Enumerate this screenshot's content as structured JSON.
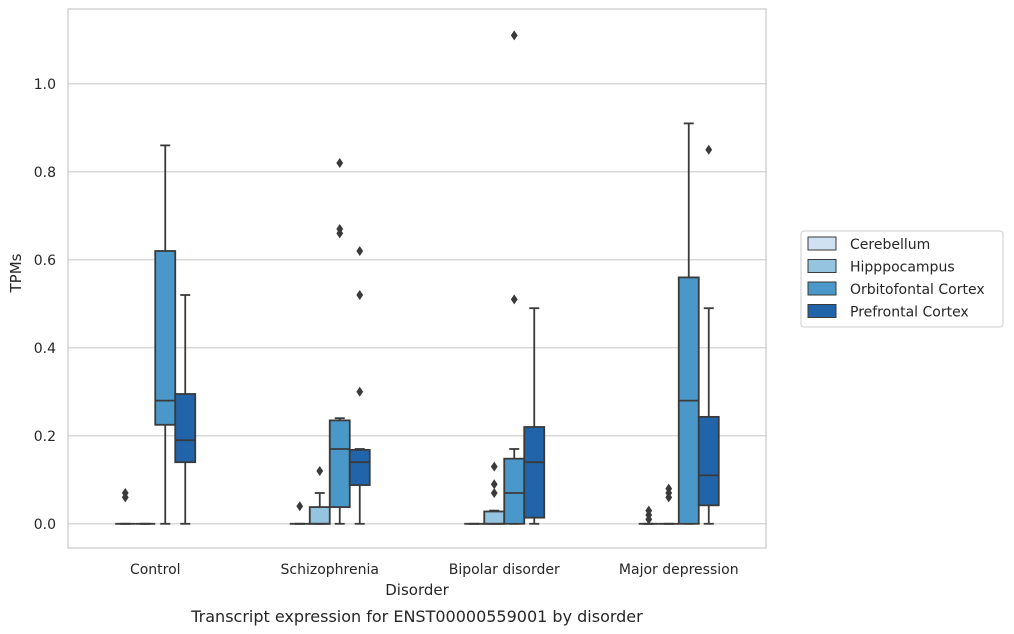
{
  "chart_data": {
    "type": "box",
    "xlabel": "Disorder",
    "ylabel": "TPMs",
    "caption": "Transcript expression for ENST00000559001 by disorder",
    "ylim": [
      -0.055,
      1.17
    ],
    "yticks": [
      "0.0",
      "0.2",
      "0.4",
      "0.6",
      "0.8",
      "1.0"
    ],
    "ytick_values": [
      0.0,
      0.2,
      0.4,
      0.6,
      0.8,
      1.0
    ],
    "grid": true,
    "legend_position": "right",
    "categories": [
      "Control",
      "Schizophrenia",
      "Bipolar disorder",
      "Major depression"
    ],
    "series": [
      {
        "name": "Cerebellum",
        "color": "#d0e1f2",
        "boxes": [
          {
            "min": 0.0,
            "q1": 0.0,
            "median": 0.0,
            "q3": 0.0,
            "max": 0.0,
            "outliers": [
              0.06,
              0.07
            ]
          },
          {
            "min": 0.0,
            "q1": 0.0,
            "median": 0.0,
            "q3": 0.0,
            "max": 0.0,
            "outliers": [
              0.04
            ]
          },
          {
            "min": 0.0,
            "q1": 0.0,
            "median": 0.0,
            "q3": 0.0,
            "max": 0.0,
            "outliers": []
          },
          {
            "min": 0.0,
            "q1": 0.0,
            "median": 0.0,
            "q3": 0.0,
            "max": 0.0,
            "outliers": [
              0.01,
              0.02,
              0.03
            ]
          }
        ]
      },
      {
        "name": "Hipppocampus",
        "color": "#94c4df",
        "boxes": [
          {
            "min": 0.0,
            "q1": 0.0,
            "median": 0.0,
            "q3": 0.0,
            "max": 0.0,
            "outliers": []
          },
          {
            "min": 0.0,
            "q1": 0.0,
            "median": 0.0,
            "q3": 0.038,
            "max": 0.07,
            "outliers": [
              0.12
            ]
          },
          {
            "min": 0.0,
            "q1": 0.0,
            "median": 0.0,
            "q3": 0.028,
            "max": 0.03,
            "outliers": [
              0.07,
              0.09,
              0.13
            ]
          },
          {
            "min": 0.0,
            "q1": 0.0,
            "median": 0.0,
            "q3": 0.0,
            "max": 0.0,
            "outliers": [
              0.06,
              0.07,
              0.08
            ]
          }
        ]
      },
      {
        "name": "Orbitofontal Cortex",
        "color": "#4a98c9",
        "boxes": [
          {
            "min": 0.0,
            "q1": 0.225,
            "median": 0.28,
            "q3": 0.62,
            "max": 0.86,
            "outliers": []
          },
          {
            "min": 0.0,
            "q1": 0.038,
            "median": 0.17,
            "q3": 0.235,
            "max": 0.24,
            "outliers": [
              0.66,
              0.67,
              0.82
            ]
          },
          {
            "min": 0.0,
            "q1": 0.0,
            "median": 0.07,
            "q3": 0.148,
            "max": 0.17,
            "outliers": [
              0.51,
              1.11
            ]
          },
          {
            "min": 0.0,
            "q1": 0.0,
            "median": 0.28,
            "q3": 0.56,
            "max": 0.91,
            "outliers": []
          }
        ]
      },
      {
        "name": "Prefrontal Cortex",
        "color": "#2264a9",
        "boxes": [
          {
            "min": 0.0,
            "q1": 0.14,
            "median": 0.19,
            "q3": 0.295,
            "max": 0.52,
            "outliers": []
          },
          {
            "min": 0.0,
            "q1": 0.088,
            "median": 0.14,
            "q3": 0.168,
            "max": 0.17,
            "outliers": [
              0.3,
              0.52,
              0.62
            ]
          },
          {
            "min": 0.0,
            "q1": 0.014,
            "median": 0.14,
            "q3": 0.22,
            "max": 0.49,
            "outliers": []
          },
          {
            "min": 0.0,
            "q1": 0.042,
            "median": 0.11,
            "q3": 0.243,
            "max": 0.49,
            "outliers": [
              0.85
            ]
          }
        ]
      }
    ]
  }
}
